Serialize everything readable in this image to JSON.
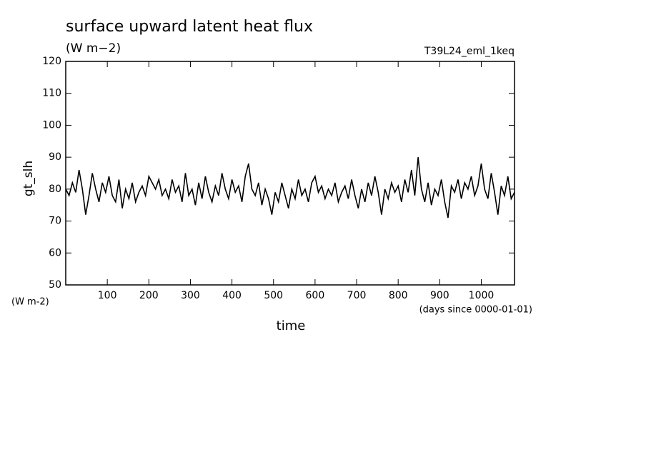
{
  "chart_data": {
    "type": "line",
    "title": "surface upward latent heat flux",
    "subtitle": "(W m−2)",
    "run_label": "T39L24_eml_1keq",
    "y_label": "gt_slh",
    "y_unit": "(W m-2)",
    "x_label": "time",
    "x_unit": "(days since 0000-01-01)",
    "xlim": [
      0,
      1080
    ],
    "ylim": [
      50,
      120
    ],
    "xticks": [
      100,
      200,
      300,
      400,
      500,
      600,
      700,
      800,
      900,
      1000
    ],
    "yticks": [
      50,
      60,
      70,
      80,
      90,
      100,
      110,
      120
    ],
    "x": [
      0,
      8,
      16,
      24,
      32,
      40,
      48,
      56,
      64,
      72,
      80,
      88,
      96,
      104,
      112,
      120,
      128,
      136,
      144,
      152,
      160,
      168,
      176,
      184,
      192,
      200,
      208,
      216,
      224,
      232,
      240,
      248,
      256,
      264,
      272,
      280,
      288,
      296,
      304,
      312,
      320,
      328,
      336,
      344,
      352,
      360,
      368,
      376,
      384,
      392,
      400,
      408,
      416,
      424,
      432,
      440,
      448,
      456,
      464,
      472,
      480,
      488,
      496,
      504,
      512,
      520,
      528,
      536,
      544,
      552,
      560,
      568,
      576,
      584,
      592,
      600,
      608,
      616,
      624,
      632,
      640,
      648,
      656,
      664,
      672,
      680,
      688,
      696,
      704,
      712,
      720,
      728,
      736,
      744,
      752,
      760,
      768,
      776,
      784,
      792,
      800,
      808,
      816,
      824,
      832,
      840,
      848,
      856,
      864,
      872,
      880,
      888,
      896,
      904,
      912,
      920,
      928,
      936,
      944,
      952,
      960,
      968,
      976,
      984,
      992,
      1000,
      1008,
      1016,
      1024,
      1032,
      1040,
      1048,
      1056,
      1064,
      1072,
      1080
    ],
    "series": [
      {
        "color": "#000000",
        "values": [
          80,
          78,
          82,
          79,
          86,
          80,
          72,
          78,
          85,
          80,
          76,
          82,
          79,
          84,
          78,
          76,
          83,
          74,
          80,
          77,
          82,
          76,
          79,
          81,
          78,
          84,
          82,
          80,
          83,
          78,
          80,
          77,
          83,
          79,
          81,
          76,
          85,
          78,
          80,
          75,
          82,
          77,
          84,
          79,
          76,
          81,
          78,
          85,
          80,
          77,
          83,
          79,
          81,
          76,
          84,
          88,
          80,
          78,
          82,
          75,
          80,
          77,
          72,
          79,
          76,
          82,
          78,
          74,
          80,
          77,
          83,
          78,
          80,
          76,
          82,
          84,
          79,
          81,
          77,
          80,
          78,
          82,
          76,
          79,
          81,
          77,
          83,
          78,
          74,
          80,
          76,
          82,
          78,
          84,
          79,
          72,
          80,
          77,
          82,
          79,
          81,
          76,
          83,
          79,
          86,
          78,
          90,
          80,
          76,
          82,
          75,
          80,
          78,
          83,
          76,
          71,
          81,
          79,
          83,
          77,
          82,
          80,
          84,
          78,
          81,
          88,
          80,
          77,
          85,
          79,
          72,
          81,
          78,
          84,
          77,
          79
        ]
      }
    ]
  }
}
